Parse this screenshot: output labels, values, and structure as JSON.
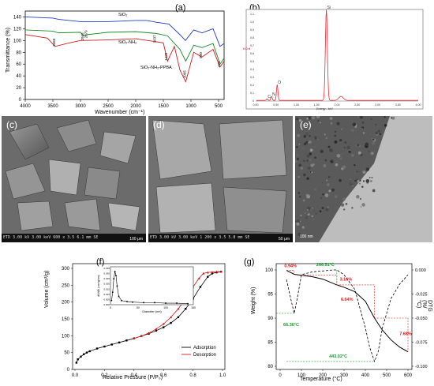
{
  "panels": {
    "a": {
      "letter": "(a)",
      "xlabel": "Wavenumber (cm⁻¹)",
      "ylabel": "Transmittance (%)",
      "xticks": [
        "4000",
        "3500",
        "3000",
        "2500",
        "2000",
        "1500",
        "1000",
        "500"
      ],
      "yticks": [
        "0",
        "20",
        "40",
        "60",
        "80",
        "100",
        "120",
        "140"
      ],
      "series_labels": [
        "SiO₂",
        "SiO₂-NH₂",
        "SiO₂-NH₂-PPBA"
      ],
      "peak_labels": [
        "3460",
        "2945",
        "2879",
        "1637",
        "1425",
        "1095",
        "800",
        "474"
      ],
      "colors": [
        "#1f3fbf",
        "#1a8a2a",
        "#cc1f1f"
      ]
    },
    "b": {
      "letter": "(b)",
      "peak_labels": [
        "C",
        "N",
        "O",
        "Si"
      ],
      "xticks": [
        "0,00",
        "0,50",
        "1,00",
        "1,50",
        "2,00",
        "2,50",
        "3,00",
        "3,50",
        "4,00"
      ],
      "yticks": [
        "0",
        "0,1",
        "0,2",
        "0,3",
        "0,4",
        "0,5",
        "0,6",
        "0,7",
        "0,8",
        "0,9",
        "1,0",
        "1,1"
      ],
      "axis_note": "Energy - keV",
      "ylabel": "KCnt",
      "color": "#e0303a"
    },
    "c": {
      "letter": "(c)",
      "bar": "det  HV   Landing E  mag   spot  WD    mode",
      "bar2": "ETD  3.00 kV  3.00 keV  600 x  3.5  6.1 mm  SE",
      "scale": "100 μm"
    },
    "d": {
      "letter": "(d)",
      "bar": "det  HV   Landing E  mag   spot  WD    mode",
      "bar2": "ETD  3.00 kV  3.00 keV  1 200 x  3.5  5.8 mm  SE",
      "scale": "50 μm"
    },
    "e": {
      "letter": "(e)",
      "scale": "100 nm"
    },
    "f": {
      "letter": "(f)",
      "xlabel": "Relative Pressure (P/P₀)",
      "ylabel": "Volume (cm³/g)",
      "xticks": [
        "0.0",
        "0.2",
        "0.4",
        "0.6",
        "0.8",
        "1.0"
      ],
      "yticks": [
        "0",
        "50",
        "100",
        "150",
        "200",
        "250",
        "300"
      ],
      "legend": [
        "Adsorption",
        "Desorption"
      ],
      "inset": {
        "xlabel": "Diameter (nm)",
        "ylabel": "dV/dD (cm³/g/nm)",
        "xticks": [
          "0",
          "50",
          "100",
          "150"
        ],
        "yticks": [
          "0.000",
          "0.005",
          "0.010",
          "0.015",
          "0.020",
          "0.025",
          "0.030",
          "0.035"
        ]
      }
    },
    "g": {
      "letter": "(g)",
      "xlabel": "Temperature (°C)",
      "ylabel": "Weight (%)",
      "ylabel2": "DTG (%/°C)",
      "xticks": [
        "0",
        "100",
        "200",
        "300",
        "400",
        "500",
        "600"
      ],
      "yticks": [
        "80",
        "85",
        "90",
        "95",
        "100"
      ],
      "yticks2": [
        "0.000",
        "-0.025",
        "-0.050",
        "-0.075",
        "-0.100"
      ],
      "annotations": [
        "0.94%",
        "3.16%",
        "6.64%",
        "7.68%"
      ],
      "temps": [
        "266.51°C",
        "66.36°C",
        "443.02°C"
      ]
    }
  },
  "chart_data": [
    {
      "type": "line",
      "title": "",
      "xlabel": "Wavenumber (cm⁻¹)",
      "ylabel": "Transmittance (%)",
      "xlim": [
        4000,
        400
      ],
      "ylim": [
        0,
        150
      ],
      "series": [
        {
          "name": "SiO₂",
          "x": [
            4000,
            3500,
            3400,
            3000,
            2500,
            2000,
            1800,
            1630,
            1400,
            1200,
            1100,
            950,
            800,
            600,
            474,
            400
          ],
          "values": [
            140,
            138,
            136,
            132,
            132,
            134,
            134,
            131,
            128,
            110,
            100,
            118,
            113,
            120,
            90,
            95
          ]
        },
        {
          "name": "SiO₂-NH₂",
          "x": [
            4000,
            3500,
            3400,
            3000,
            2945,
            2879,
            2500,
            2000,
            1630,
            1425,
            1200,
            1095,
            950,
            800,
            600,
            474,
            400
          ],
          "values": [
            118,
            116,
            113,
            114,
            108,
            110,
            114,
            115,
            112,
            108,
            85,
            65,
            92,
            88,
            95,
            60,
            70
          ]
        },
        {
          "name": "SiO₂-NH₂-PPBA",
          "x": [
            4000,
            3600,
            3460,
            3200,
            3000,
            2500,
            2000,
            1637,
            1500,
            1425,
            1300,
            1200,
            1095,
            950,
            800,
            600,
            474,
            400
          ],
          "values": [
            110,
            104,
            90,
            96,
            100,
            101,
            103,
            98,
            96,
            65,
            90,
            50,
            30,
            80,
            72,
            85,
            55,
            65
          ]
        }
      ]
    },
    {
      "type": "bar",
      "title": "",
      "xlabel": "Energy - keV",
      "ylabel": "KCnt",
      "categories": [
        "C",
        "N",
        "O",
        "Si"
      ],
      "x": [
        0.28,
        0.39,
        0.53,
        1.74
      ],
      "values": [
        0.02,
        0.05,
        0.2,
        1.15
      ],
      "xlim": [
        0,
        4
      ],
      "ylim": [
        0,
        1.1
      ]
    },
    {
      "type": "line",
      "title": "",
      "xlabel": "Relative Pressure (P/P₀)",
      "ylabel": "Volume (cm³/g)",
      "xlim": [
        0,
        1.0
      ],
      "ylim": [
        0,
        300
      ],
      "series": [
        {
          "name": "Adsorption",
          "x": [
            0.01,
            0.02,
            0.04,
            0.06,
            0.08,
            0.1,
            0.15,
            0.2,
            0.25,
            0.3,
            0.35,
            0.4,
            0.45,
            0.5,
            0.55,
            0.6,
            0.65,
            0.7,
            0.75,
            0.8,
            0.85,
            0.9,
            0.93,
            0.96,
            0.99
          ],
          "values": [
            20,
            30,
            38,
            45,
            50,
            54,
            62,
            68,
            74,
            80,
            86,
            92,
            99,
            106,
            115,
            125,
            138,
            155,
            180,
            210,
            245,
            275,
            285,
            288,
            290
          ]
        },
        {
          "name": "Desorption",
          "x": [
            0.99,
            0.96,
            0.93,
            0.9,
            0.87,
            0.84,
            0.8,
            0.75,
            0.7,
            0.65,
            0.6,
            0.55,
            0.5,
            0.45,
            0.4
          ],
          "values": [
            290,
            290,
            289,
            288,
            285,
            270,
            245,
            210,
            180,
            155,
            135,
            120,
            108,
            99,
            92
          ]
        }
      ],
      "inset": {
        "xlabel": "Diameter (nm)",
        "ylabel": "dV/dD (cm³/g/nm)",
        "xlim": [
          0,
          150
        ],
        "ylim": [
          0,
          0.035
        ],
        "x": [
          2,
          4,
          6,
          8,
          10,
          12,
          15,
          20,
          30,
          40,
          60,
          80,
          100,
          120,
          140
        ],
        "values": [
          0.004,
          0.012,
          0.025,
          0.032,
          0.028,
          0.018,
          0.008,
          0.004,
          0.003,
          0.0025,
          0.002,
          0.002,
          0.0015,
          0.0015,
          0.001
        ]
      }
    },
    {
      "type": "line",
      "title": "",
      "xlabel": "Temperature (°C)",
      "ylabel": "Weight (%)",
      "ylabel2": "DTG (%/°C)",
      "xlim": [
        0,
        600
      ],
      "ylim": [
        80,
        100
      ],
      "y2lim": [
        -0.1,
        0.0
      ],
      "series": [
        {
          "name": "Weight",
          "x": [
            30,
            66,
            100,
            150,
            200,
            266,
            300,
            350,
            400,
            443,
            480,
            520,
            560,
            600
          ],
          "values": [
            99.9,
            99.1,
            98.9,
            98.6,
            98.1,
            96.9,
            96.4,
            95.5,
            93.5,
            90.0,
            87.5,
            85.5,
            84.0,
            83.0
          ]
        },
        {
          "name": "DTG",
          "x": [
            30,
            50,
            66,
            80,
            100,
            150,
            200,
            250,
            266,
            300,
            350,
            400,
            420,
            443,
            460,
            480,
            520,
            560,
            600
          ],
          "values": [
            -0.01,
            -0.03,
            -0.045,
            -0.03,
            -0.005,
            -0.002,
            -0.001,
            0.0,
            0.0,
            -0.005,
            -0.02,
            -0.06,
            -0.08,
            -0.095,
            -0.085,
            -0.06,
            -0.03,
            -0.015,
            -0.005
          ]
        }
      ]
    }
  ]
}
